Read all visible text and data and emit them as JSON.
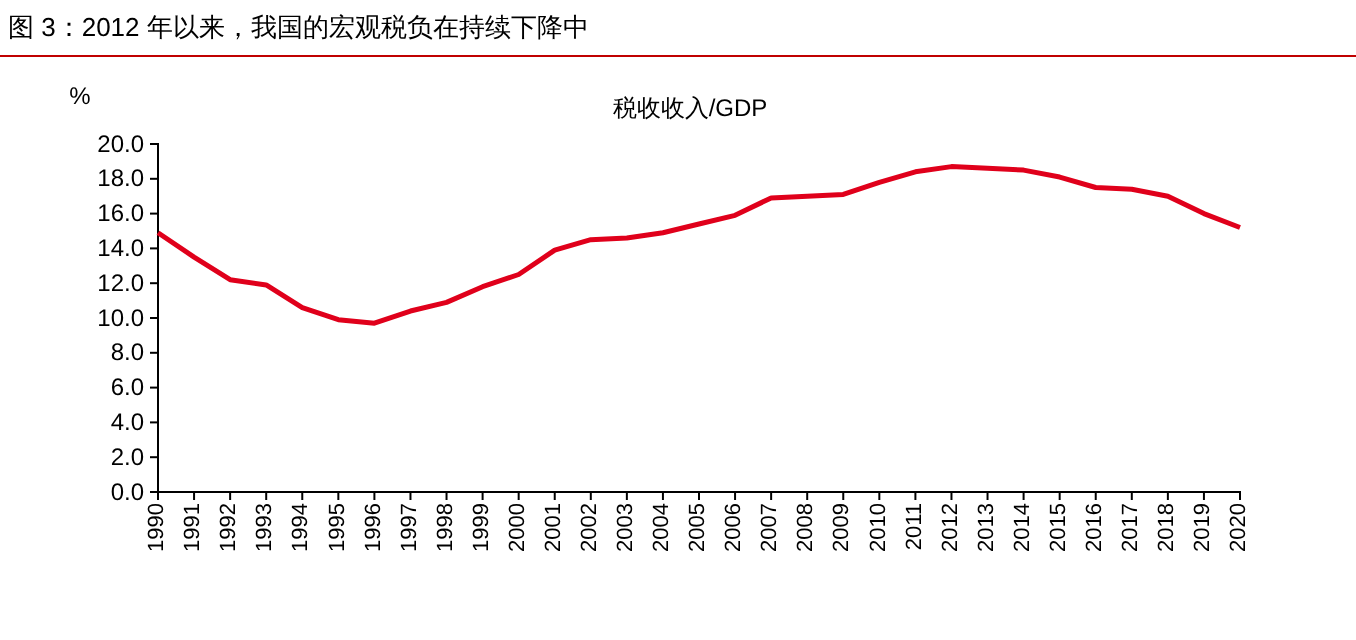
{
  "chart_data": {
    "type": "line",
    "title": "图 3：2012 年以来，我国的宏观税负在持续下降中",
    "ylabel": "%",
    "categories": [
      "1990",
      "1991",
      "1992",
      "1993",
      "1994",
      "1995",
      "1996",
      "1997",
      "1998",
      "1999",
      "2000",
      "2001",
      "2002",
      "2003",
      "2004",
      "2005",
      "2006",
      "2007",
      "2008",
      "2009",
      "2010",
      "2011",
      "2012",
      "2013",
      "2014",
      "2015",
      "2016",
      "2017",
      "2018",
      "2019",
      "2020"
    ],
    "series": [
      {
        "name": "税收收入/GDP",
        "color": "#e0001b",
        "values": [
          14.9,
          13.5,
          12.2,
          11.9,
          10.6,
          9.9,
          9.7,
          10.4,
          10.9,
          11.8,
          12.5,
          13.9,
          14.5,
          14.6,
          14.9,
          15.4,
          15.9,
          16.9,
          17.0,
          17.1,
          17.8,
          18.4,
          18.7,
          18.6,
          18.5,
          18.1,
          17.5,
          17.4,
          17.0,
          16.0,
          15.2
        ]
      }
    ],
    "ylim": [
      0,
      20
    ],
    "yticks": [
      {
        "value": 0,
        "label": "0.0"
      },
      {
        "value": 2,
        "label": "2.0"
      },
      {
        "value": 4,
        "label": "4.0"
      },
      {
        "value": 6,
        "label": "6.0"
      },
      {
        "value": 8,
        "label": "8.0"
      },
      {
        "value": 10,
        "label": "10.0"
      },
      {
        "value": 12,
        "label": "12.0"
      },
      {
        "value": 14,
        "label": "14.0"
      },
      {
        "value": 16,
        "label": "16.0"
      },
      {
        "value": 18,
        "label": "18.0"
      },
      {
        "value": 20,
        "label": "20.0"
      }
    ],
    "legend": "top",
    "grid": false,
    "marker": "none",
    "line_style": "solid"
  }
}
